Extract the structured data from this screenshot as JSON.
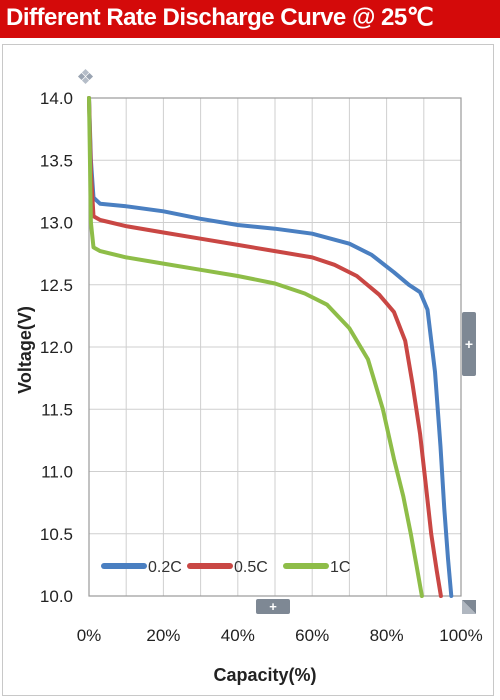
{
  "header": {
    "title": "Different Rate Discharge Curve @ 25℃"
  },
  "chart_data": {
    "type": "line",
    "title": "Different Rate Discharge Curve @ 25℃",
    "xlabel": "Capacity(%)",
    "ylabel": "Voltage(V)",
    "xlim": [
      0,
      100
    ],
    "ylim": [
      10.0,
      14.0
    ],
    "x_ticks": [
      "0%",
      "20%",
      "40%",
      "60%",
      "80%",
      "100%"
    ],
    "y_ticks": [
      "10.0",
      "10.5",
      "11.0",
      "11.5",
      "12.0",
      "12.5",
      "13.0",
      "13.5",
      "14.0"
    ],
    "grid": true,
    "legend_position": "bottom-left",
    "series": [
      {
        "name": "0.2C",
        "color": "#4a7fc1",
        "points": [
          [
            0,
            14.0
          ],
          [
            0.5,
            13.5
          ],
          [
            1.2,
            13.2
          ],
          [
            3,
            13.15
          ],
          [
            10,
            13.13
          ],
          [
            20,
            13.09
          ],
          [
            30,
            13.03
          ],
          [
            40,
            12.98
          ],
          [
            50,
            12.95
          ],
          [
            60,
            12.91
          ],
          [
            70,
            12.83
          ],
          [
            76,
            12.74
          ],
          [
            82,
            12.6
          ],
          [
            86,
            12.5
          ],
          [
            89,
            12.44
          ],
          [
            91,
            12.3
          ],
          [
            93,
            11.8
          ],
          [
            94.5,
            11.2
          ],
          [
            95.5,
            10.7
          ],
          [
            96.5,
            10.3
          ],
          [
            97.4,
            10.0
          ]
        ]
      },
      {
        "name": "0.5C",
        "color": "#c94744",
        "points": [
          [
            0,
            14.0
          ],
          [
            0.5,
            13.4
          ],
          [
            1.2,
            13.05
          ],
          [
            3,
            13.02
          ],
          [
            10,
            12.97
          ],
          [
            20,
            12.92
          ],
          [
            30,
            12.87
          ],
          [
            40,
            12.82
          ],
          [
            50,
            12.77
          ],
          [
            60,
            12.72
          ],
          [
            66,
            12.66
          ],
          [
            72,
            12.57
          ],
          [
            78,
            12.42
          ],
          [
            82,
            12.28
          ],
          [
            85,
            12.05
          ],
          [
            87,
            11.7
          ],
          [
            89,
            11.3
          ],
          [
            90.5,
            10.9
          ],
          [
            92,
            10.5
          ],
          [
            93.5,
            10.2
          ],
          [
            94.6,
            10.0
          ]
        ]
      },
      {
        "name": "1C",
        "color": "#8ebd48",
        "points": [
          [
            0,
            14.0
          ],
          [
            0.5,
            13.0
          ],
          [
            1.2,
            12.8
          ],
          [
            3,
            12.77
          ],
          [
            10,
            12.72
          ],
          [
            20,
            12.67
          ],
          [
            30,
            12.62
          ],
          [
            40,
            12.57
          ],
          [
            50,
            12.51
          ],
          [
            58,
            12.43
          ],
          [
            64,
            12.34
          ],
          [
            70,
            12.15
          ],
          [
            75,
            11.9
          ],
          [
            79,
            11.5
          ],
          [
            82,
            11.1
          ],
          [
            84.5,
            10.8
          ],
          [
            86.5,
            10.5
          ],
          [
            88,
            10.25
          ],
          [
            89.5,
            10.0
          ]
        ]
      }
    ]
  }
}
